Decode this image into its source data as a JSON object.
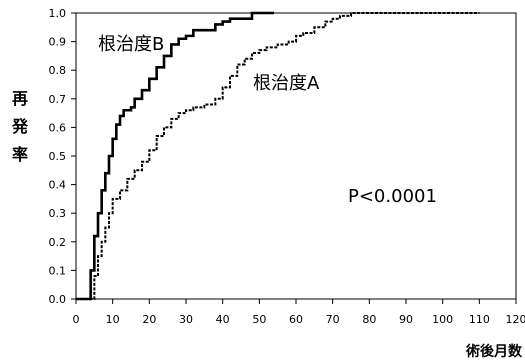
{
  "chart_data": {
    "type": "line",
    "title": "",
    "xlabel": "術後月数",
    "ylabel": "再発率",
    "xlim": [
      0,
      120
    ],
    "ylim": [
      0,
      1.0
    ],
    "x_ticks": [
      "0",
      "10",
      "20",
      "30",
      "40",
      "50",
      "60",
      "70",
      "80",
      "90",
      "100",
      "110",
      "120"
    ],
    "y_ticks": [
      "0.0",
      "0.1",
      "0.2",
      "0.3",
      "0.4",
      "0.5",
      "0.6",
      "0.7",
      "0.8",
      "0.9",
      "1.0"
    ],
    "grid": false,
    "annotation": "P<0.0001",
    "series": [
      {
        "name": "根治度B",
        "style": "solid",
        "color": "#000000",
        "points": [
          [
            0,
            0
          ],
          [
            3,
            0
          ],
          [
            4,
            0.1
          ],
          [
            5,
            0.22
          ],
          [
            6,
            0.3
          ],
          [
            7,
            0.38
          ],
          [
            8,
            0.44
          ],
          [
            9,
            0.5
          ],
          [
            10,
            0.56
          ],
          [
            11,
            0.61
          ],
          [
            12,
            0.64
          ],
          [
            13,
            0.66
          ],
          [
            15,
            0.67
          ],
          [
            16,
            0.7
          ],
          [
            18,
            0.73
          ],
          [
            20,
            0.77
          ],
          [
            22,
            0.81
          ],
          [
            24,
            0.85
          ],
          [
            26,
            0.89
          ],
          [
            28,
            0.91
          ],
          [
            30,
            0.92
          ],
          [
            32,
            0.94
          ],
          [
            35,
            0.94
          ],
          [
            38,
            0.96
          ],
          [
            40,
            0.97
          ],
          [
            42,
            0.98
          ],
          [
            47,
            0.98
          ],
          [
            48,
            1.0
          ],
          [
            54,
            1.0
          ]
        ]
      },
      {
        "name": "根治度A",
        "style": "dashed",
        "color": "#000000",
        "points": [
          [
            0,
            0
          ],
          [
            4,
            0
          ],
          [
            5,
            0.08
          ],
          [
            6,
            0.15
          ],
          [
            7,
            0.2
          ],
          [
            8,
            0.25
          ],
          [
            9,
            0.3
          ],
          [
            10,
            0.35
          ],
          [
            12,
            0.38
          ],
          [
            14,
            0.42
          ],
          [
            16,
            0.45
          ],
          [
            18,
            0.48
          ],
          [
            20,
            0.52
          ],
          [
            22,
            0.57
          ],
          [
            24,
            0.6
          ],
          [
            26,
            0.63
          ],
          [
            28,
            0.65
          ],
          [
            30,
            0.66
          ],
          [
            32,
            0.67
          ],
          [
            35,
            0.68
          ],
          [
            38,
            0.7
          ],
          [
            40,
            0.74
          ],
          [
            42,
            0.78
          ],
          [
            44,
            0.82
          ],
          [
            46,
            0.84
          ],
          [
            48,
            0.86
          ],
          [
            50,
            0.87
          ],
          [
            52,
            0.88
          ],
          [
            55,
            0.89
          ],
          [
            58,
            0.9
          ],
          [
            60,
            0.92
          ],
          [
            62,
            0.93
          ],
          [
            65,
            0.95
          ],
          [
            68,
            0.97
          ],
          [
            70,
            0.98
          ],
          [
            72,
            0.99
          ],
          [
            75,
            1.0
          ],
          [
            110,
            1.0
          ]
        ]
      }
    ]
  }
}
